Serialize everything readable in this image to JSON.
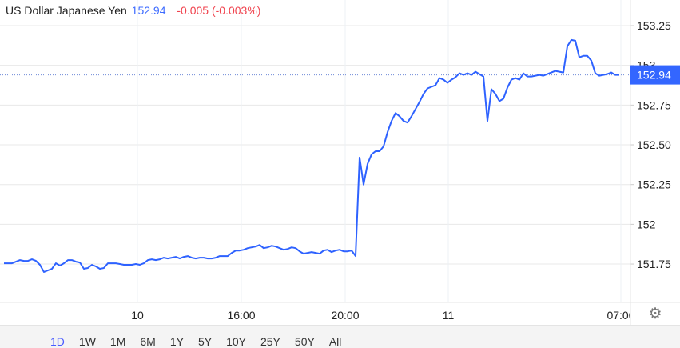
{
  "header": {
    "instrument": "US Dollar Japanese Yen",
    "price": "152.94",
    "change": "-0.005 (-0.003%)"
  },
  "colors": {
    "line": "#2e62ff",
    "price_tag": "#3366ff",
    "negative": "#f0444f",
    "grid": "#e8e8e8"
  },
  "settings_icon": "gear-icon",
  "ranges": [
    {
      "label": "1D",
      "active": true
    },
    {
      "label": "1W"
    },
    {
      "label": "1M"
    },
    {
      "label": "6M"
    },
    {
      "label": "1Y"
    },
    {
      "label": "5Y"
    },
    {
      "label": "10Y"
    },
    {
      "label": "25Y"
    },
    {
      "label": "50Y"
    },
    {
      "label": "All"
    }
  ],
  "chart_data": {
    "type": "line",
    "grid": true,
    "y_axis_side": "right",
    "ylim": [
      151.5,
      153.35
    ],
    "y_ticks": [
      "151.75",
      "152",
      "152.25",
      "152.50",
      "152.75",
      "153",
      "153.25"
    ],
    "x_ticks": [
      {
        "label": "10",
        "index": 33.4
      },
      {
        "label": "16:00",
        "index": 59.4
      },
      {
        "label": "20:00",
        "index": 85.4
      },
      {
        "label": "11",
        "index": 111.2
      },
      {
        "label": "07:00",
        "index": 154.4
      }
    ],
    "last_price_label": "152.94",
    "last_price": 152.94,
    "values": [
      151.755,
      151.755,
      151.755,
      151.765,
      151.775,
      151.77,
      151.77,
      151.78,
      151.77,
      151.745,
      151.7,
      151.71,
      151.72,
      151.755,
      151.74,
      151.755,
      151.775,
      151.775,
      151.765,
      151.76,
      151.72,
      151.725,
      151.745,
      151.735,
      151.72,
      151.725,
      151.755,
      151.755,
      151.755,
      151.75,
      151.745,
      151.745,
      151.745,
      151.75,
      151.745,
      151.755,
      151.775,
      151.78,
      151.775,
      151.78,
      151.79,
      151.785,
      151.79,
      151.795,
      151.785,
      151.795,
      151.8,
      151.79,
      151.785,
      151.79,
      151.79,
      151.785,
      151.785,
      151.79,
      151.8,
      151.8,
      151.8,
      151.82,
      151.835,
      151.835,
      151.84,
      151.85,
      151.855,
      151.86,
      151.87,
      151.85,
      151.855,
      151.865,
      151.86,
      151.85,
      151.84,
      151.845,
      151.855,
      151.85,
      151.83,
      151.815,
      151.82,
      151.825,
      151.82,
      151.815,
      151.835,
      151.84,
      151.825,
      151.835,
      151.84,
      151.83,
      151.83,
      151.835,
      151.8,
      152.42,
      152.25,
      152.38,
      152.44,
      152.46,
      152.46,
      152.49,
      152.58,
      152.65,
      152.7,
      152.68,
      152.65,
      152.64,
      152.68,
      152.725,
      152.77,
      152.82,
      152.855,
      152.865,
      152.875,
      152.92,
      152.91,
      152.89,
      152.91,
      152.925,
      152.95,
      152.94,
      152.95,
      152.94,
      152.96,
      152.945,
      152.93,
      152.65,
      152.85,
      152.82,
      152.775,
      152.79,
      152.86,
      152.91,
      152.92,
      152.91,
      152.95,
      152.93,
      152.93,
      152.935,
      152.94,
      152.935,
      152.945,
      152.955,
      152.965,
      152.96,
      152.955,
      153.12,
      153.16,
      153.155,
      153.05,
      153.06,
      153.06,
      153.03,
      152.95,
      152.935,
      152.94,
      152.945,
      152.955,
      152.94,
      152.94
    ]
  }
}
